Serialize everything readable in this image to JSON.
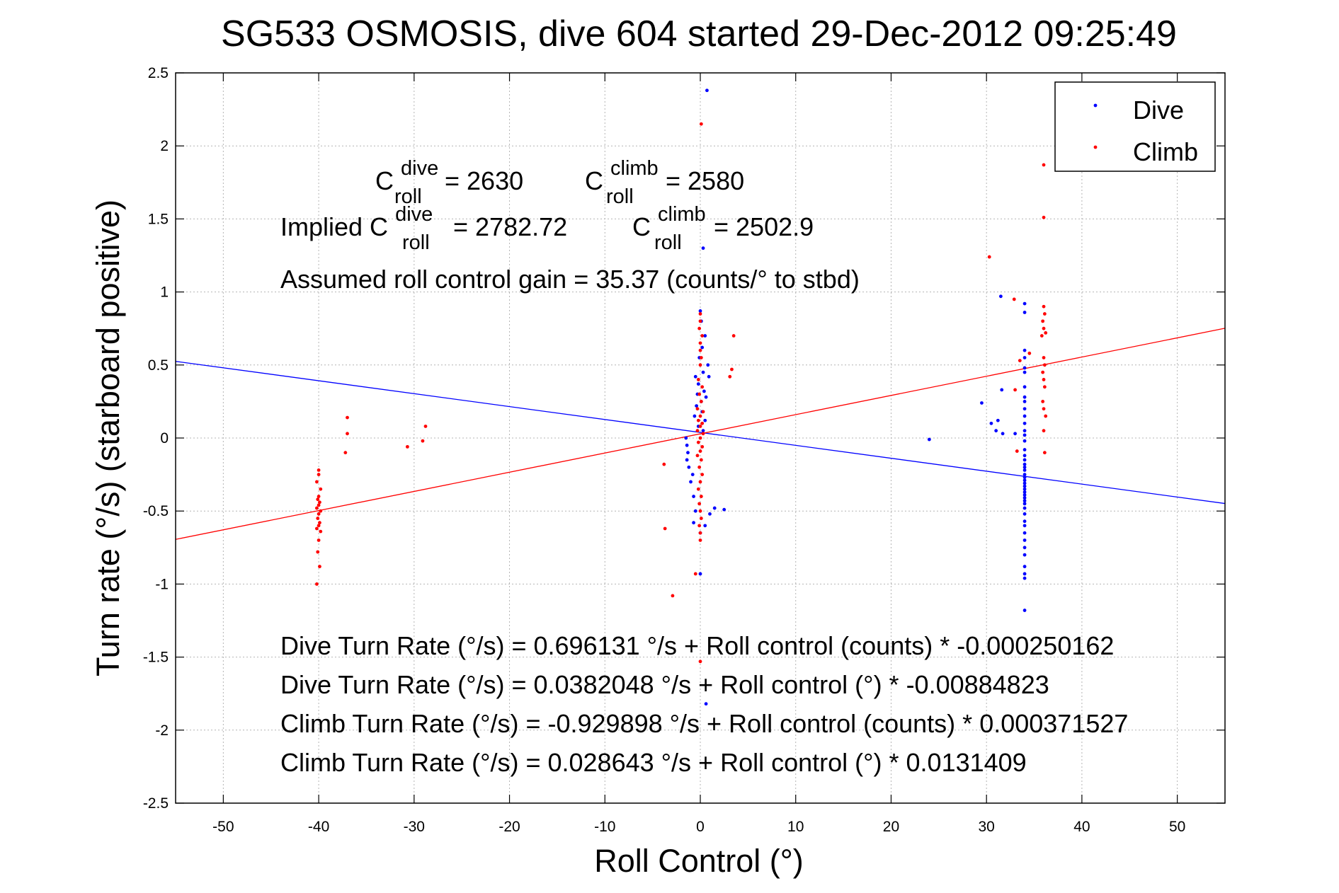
{
  "chart_data": {
    "type": "scatter",
    "title": "SG533 OSMOSIS, dive 604 started 29-Dec-2012 09:25:49",
    "xlabel": "Roll Control (°)",
    "ylabel": "Turn rate (°/s)  (starboard positive)",
    "xlim": [
      -55,
      55
    ],
    "ylim": [
      -2.5,
      2.5
    ],
    "xticks": [
      -50,
      -40,
      -30,
      -20,
      -10,
      0,
      10,
      20,
      30,
      40,
      50
    ],
    "yticks": [
      -2.5,
      -2,
      -1.5,
      -1,
      -0.5,
      0,
      0.5,
      1,
      1.5,
      2,
      2.5
    ],
    "grid": true,
    "legend_position": "top-right",
    "colors": {
      "dive": "#0000ff",
      "climb": "#ff0000"
    },
    "series": [
      {
        "name": "Dive",
        "color": "#0000ff",
        "points": [
          [
            0.7,
            2.38
          ],
          [
            0.3,
            1.3
          ],
          [
            0.0,
            0.87
          ],
          [
            0.1,
            0.8
          ],
          [
            0.5,
            0.7
          ],
          [
            0.2,
            0.62
          ],
          [
            -0.1,
            0.55
          ],
          [
            0.8,
            0.5
          ],
          [
            0.3,
            0.45
          ],
          [
            -0.5,
            0.42
          ],
          [
            0.9,
            0.42
          ],
          [
            -0.2,
            0.37
          ],
          [
            0.4,
            0.32
          ],
          [
            -0.3,
            0.3
          ],
          [
            0.6,
            0.28
          ],
          [
            0.1,
            0.25
          ],
          [
            -0.4,
            0.22
          ],
          [
            0.2,
            0.18
          ],
          [
            -0.6,
            0.15
          ],
          [
            0.5,
            0.12
          ],
          [
            -0.2,
            0.08
          ],
          [
            0.3,
            0.05
          ],
          [
            -1.5,
            0.0
          ],
          [
            -1.4,
            -0.05
          ],
          [
            -1.3,
            -0.1
          ],
          [
            -1.4,
            -0.15
          ],
          [
            -1.2,
            -0.2
          ],
          [
            -0.8,
            -0.25
          ],
          [
            -1.0,
            -0.3
          ],
          [
            -0.7,
            -0.4
          ],
          [
            1.5,
            -0.48
          ],
          [
            2.5,
            -0.49
          ],
          [
            -0.5,
            -0.5
          ],
          [
            1.0,
            -0.52
          ],
          [
            -0.7,
            -0.58
          ],
          [
            0.5,
            -0.6
          ],
          [
            0.0,
            -0.65
          ],
          [
            0.0,
            -0.93
          ],
          [
            0.6,
            -1.82
          ],
          [
            24,
            -0.01
          ],
          [
            29.5,
            0.24
          ],
          [
            30.5,
            0.1
          ],
          [
            31,
            0.05
          ],
          [
            31.2,
            0.12
          ],
          [
            31.6,
            0.33
          ],
          [
            31.7,
            0.03
          ],
          [
            33,
            0.03
          ],
          [
            31.5,
            0.97
          ],
          [
            34,
            0.92
          ],
          [
            34,
            0.86
          ],
          [
            34,
            0.6
          ],
          [
            34,
            0.55
          ],
          [
            34,
            0.48
          ],
          [
            34,
            0.45
          ],
          [
            34,
            0.35
          ],
          [
            34,
            0.28
          ],
          [
            34,
            0.25
          ],
          [
            34,
            0.2
          ],
          [
            34,
            0.15
          ],
          [
            34,
            0.1
          ],
          [
            34,
            0.05
          ],
          [
            34,
            0.02
          ],
          [
            34,
            -0.02
          ],
          [
            34,
            -0.08
          ],
          [
            34,
            -0.12
          ],
          [
            34,
            -0.15
          ],
          [
            34,
            -0.18
          ],
          [
            34,
            -0.2
          ],
          [
            34,
            -0.22
          ],
          [
            34,
            -0.25
          ],
          [
            34,
            -0.27
          ],
          [
            34,
            -0.29
          ],
          [
            34,
            -0.31
          ],
          [
            34,
            -0.33
          ],
          [
            34,
            -0.35
          ],
          [
            34,
            -0.37
          ],
          [
            34,
            -0.39
          ],
          [
            34,
            -0.41
          ],
          [
            34,
            -0.43
          ],
          [
            34,
            -0.45
          ],
          [
            34,
            -0.48
          ],
          [
            34,
            -0.52
          ],
          [
            34,
            -0.57
          ],
          [
            34,
            -0.6
          ],
          [
            34,
            -0.65
          ],
          [
            34,
            -0.7
          ],
          [
            34,
            -0.75
          ],
          [
            34,
            -0.8
          ],
          [
            34,
            -0.88
          ],
          [
            34,
            -0.93
          ],
          [
            34,
            -0.96
          ],
          [
            34,
            -1.18
          ]
        ],
        "fit": {
          "slope": -0.00884823,
          "intercept": 0.0382048
        }
      },
      {
        "name": "Climb",
        "color": "#ff0000",
        "points": [
          [
            0.1,
            2.15
          ],
          [
            0.0,
            0.85
          ],
          [
            0.0,
            0.8
          ],
          [
            -0.1,
            0.75
          ],
          [
            0.2,
            0.7
          ],
          [
            3.5,
            0.7
          ],
          [
            0.0,
            0.65
          ],
          [
            0.0,
            0.6
          ],
          [
            0.1,
            0.55
          ],
          [
            0.0,
            0.5
          ],
          [
            3.3,
            0.47
          ],
          [
            3.1,
            0.42
          ],
          [
            -0.2,
            0.4
          ],
          [
            0.2,
            0.35
          ],
          [
            -0.1,
            0.3
          ],
          [
            0.1,
            0.25
          ],
          [
            -0.3,
            0.2
          ],
          [
            0.3,
            0.18
          ],
          [
            0.0,
            0.15
          ],
          [
            -0.2,
            0.12
          ],
          [
            0.2,
            0.1
          ],
          [
            0.0,
            0.08
          ],
          [
            -0.3,
            0.05
          ],
          [
            0.3,
            0.03
          ],
          [
            0.0,
            0.0
          ],
          [
            -0.2,
            -0.03
          ],
          [
            0.2,
            -0.06
          ],
          [
            0.0,
            -0.09
          ],
          [
            -0.3,
            -0.12
          ],
          [
            0.1,
            -0.15
          ],
          [
            -0.1,
            -0.2
          ],
          [
            0.2,
            -0.25
          ],
          [
            0.0,
            -0.3
          ],
          [
            -0.2,
            -0.35
          ],
          [
            0.1,
            -0.4
          ],
          [
            -0.1,
            -0.45
          ],
          [
            0.0,
            -0.5
          ],
          [
            0.1,
            -0.55
          ],
          [
            -0.1,
            -0.6
          ],
          [
            0.0,
            -0.65
          ],
          [
            0.0,
            -0.7
          ],
          [
            -0.5,
            -0.93
          ],
          [
            0.0,
            -1.53
          ],
          [
            -3.8,
            -0.18
          ],
          [
            -3.7,
            -0.62
          ],
          [
            -2.9,
            -1.08
          ],
          [
            -40,
            -0.22
          ],
          [
            -40,
            -0.25
          ],
          [
            -40.2,
            -0.3
          ],
          [
            -39.8,
            -0.35
          ],
          [
            -40,
            -0.4
          ],
          [
            -40.1,
            -0.42
          ],
          [
            -39.9,
            -0.44
          ],
          [
            -40,
            -0.46
          ],
          [
            -40.2,
            -0.48
          ],
          [
            -39.8,
            -0.5
          ],
          [
            -40,
            -0.52
          ],
          [
            -40.1,
            -0.55
          ],
          [
            -39.9,
            -0.58
          ],
          [
            -40,
            -0.6
          ],
          [
            -40.2,
            -0.62
          ],
          [
            -39.8,
            -0.64
          ],
          [
            -40,
            -0.7
          ],
          [
            -40.1,
            -0.78
          ],
          [
            -39.9,
            -0.88
          ],
          [
            -40.2,
            -1.0
          ],
          [
            -37,
            0.14
          ],
          [
            -37,
            0.03
          ],
          [
            -37.2,
            -0.1
          ],
          [
            -30.7,
            -0.06
          ],
          [
            -29.1,
            -0.02
          ],
          [
            -28.8,
            0.08
          ],
          [
            30.3,
            1.24
          ],
          [
            32.9,
            0.95
          ],
          [
            33,
            0.33
          ],
          [
            33.2,
            -0.09
          ],
          [
            33.5,
            0.53
          ],
          [
            34.5,
            0.58
          ],
          [
            36,
            1.87
          ],
          [
            36,
            1.51
          ],
          [
            36,
            0.9
          ],
          [
            36.1,
            0.85
          ],
          [
            35.9,
            0.8
          ],
          [
            36,
            0.75
          ],
          [
            36.2,
            0.72
          ],
          [
            35.8,
            0.7
          ],
          [
            36,
            0.55
          ],
          [
            36.1,
            0.5
          ],
          [
            35.9,
            0.45
          ],
          [
            36,
            0.4
          ],
          [
            36.1,
            0.35
          ],
          [
            35.9,
            0.25
          ],
          [
            36,
            0.2
          ],
          [
            36.2,
            0.15
          ],
          [
            36,
            0.05
          ],
          [
            36.1,
            -0.1
          ]
        ],
        "fit": {
          "slope": 0.0131409,
          "intercept": 0.028643
        }
      }
    ],
    "annotations": {
      "c_roll_base": "C",
      "c_roll_sub": "roll",
      "dive_sup": "dive",
      "climb_sup": "climb",
      "c_dive_value": "= 2630",
      "c_climb_value": "= 2580",
      "implied_label": "Implied C",
      "implied_dive_value": "= 2782.72",
      "implied_climb_value": "= 2502.9",
      "gain": "Assumed roll control gain = 35.37 (counts/° to stbd)",
      "eq_dive_counts": "Dive Turn Rate (°/s) = 0.696131 °/s + Roll control (counts) * -0.000250162",
      "eq_dive_deg": "Dive Turn Rate (°/s) = 0.0382048 °/s + Roll control (°) * -0.00884823",
      "eq_climb_counts": "Climb Turn Rate (°/s) = -0.929898 °/s + Roll control (counts) * 0.000371527",
      "eq_climb_deg": "Climb Turn Rate (°/s) = 0.028643 °/s + Roll control (°) * 0.0131409"
    }
  }
}
